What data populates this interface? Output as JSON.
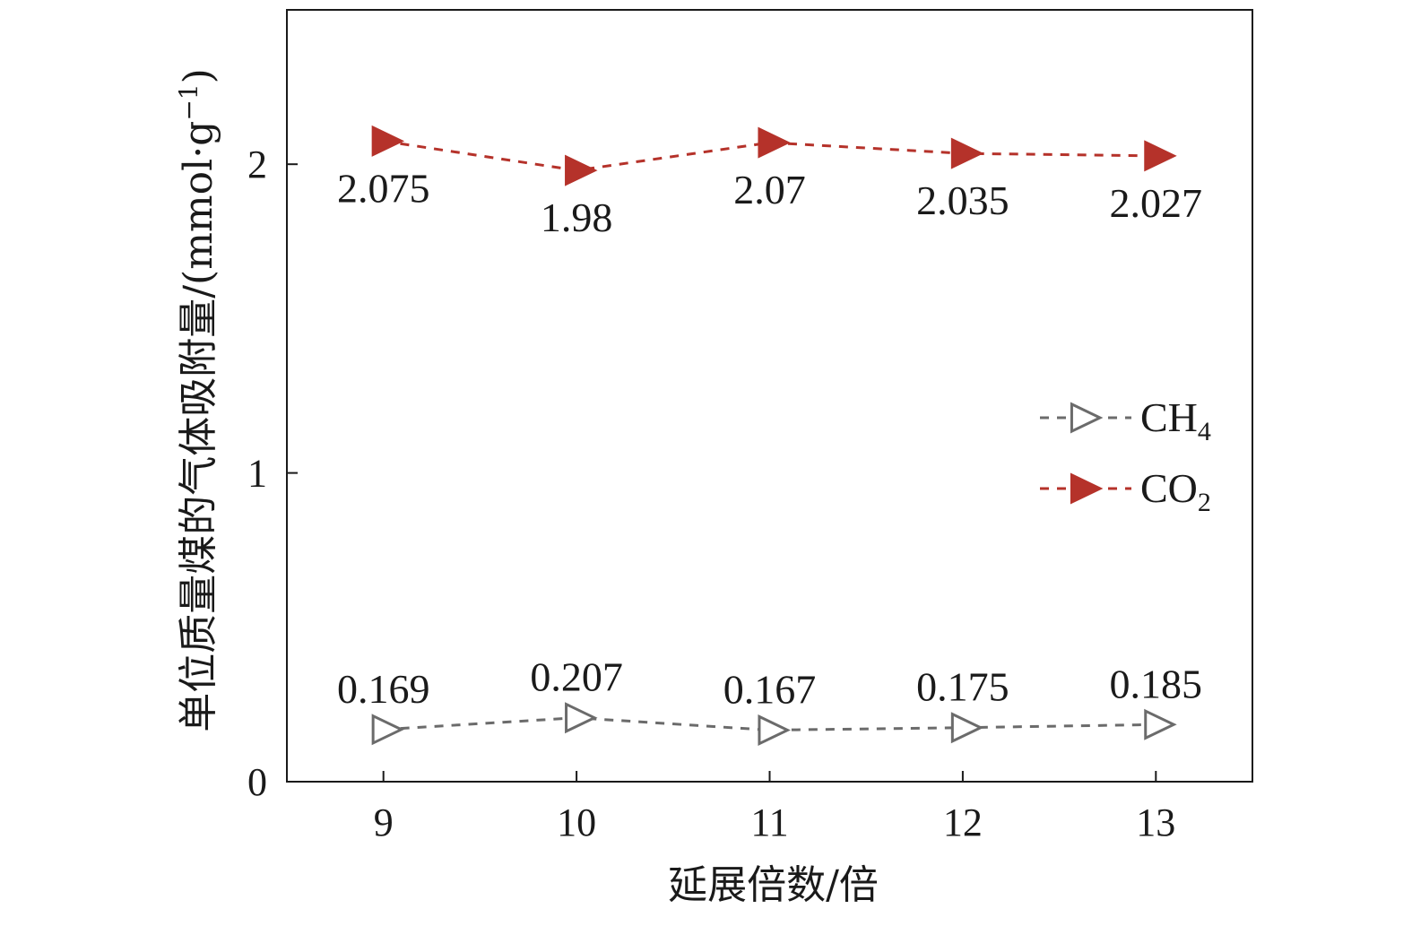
{
  "chart_data": {
    "type": "line",
    "title": "",
    "xlabel": "延展倍数/倍",
    "ylabel_prefix": "单位质量煤的气体吸附量/(mmol·g",
    "ylabel_sup": "−1",
    "ylabel_suffix": ")",
    "x": [
      9,
      10,
      11,
      12,
      13
    ],
    "xlim": [
      8.5,
      13.5
    ],
    "ylim": [
      0,
      2.5
    ],
    "yticks": [
      0,
      1,
      2
    ],
    "grid": false,
    "legend_position": "center-right",
    "series": [
      {
        "key": "CH4",
        "name_main": "CH",
        "name_sub": "4",
        "values": [
          0.169,
          0.207,
          0.167,
          0.175,
          0.185
        ],
        "labels": [
          "0.169",
          "0.207",
          "0.167",
          "0.175",
          "0.185"
        ],
        "label_position": "above",
        "color": "#6b6b6b",
        "marker": "triangle-right-open"
      },
      {
        "key": "CO2",
        "name_main": "CO",
        "name_sub": "2",
        "values": [
          2.075,
          1.98,
          2.07,
          2.035,
          2.027
        ],
        "labels": [
          "2.075",
          "1.98",
          "2.07",
          "2.035",
          "2.027"
        ],
        "label_position": "below",
        "color": "#b5322a",
        "marker": "triangle-right-filled"
      }
    ]
  }
}
